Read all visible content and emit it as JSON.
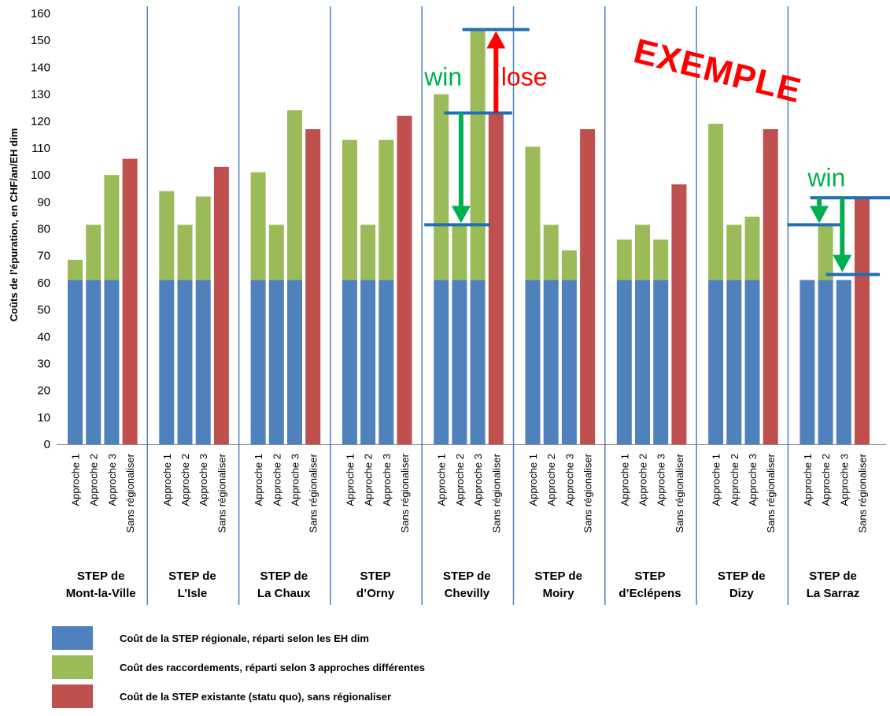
{
  "chart_data": {
    "type": "bar",
    "stacked": true,
    "ylabel": "Coûts de l’épuration, en CHF/an/EH dim",
    "ylim": [
      0,
      160
    ],
    "yticks": [
      0,
      10,
      20,
      30,
      40,
      50,
      60,
      70,
      80,
      90,
      100,
      110,
      120,
      130,
      140,
      150,
      160
    ],
    "grid": false,
    "groups": [
      {
        "label_line1": "STEP de",
        "label_line2": "Mont-la-Ville",
        "bars": [
          {
            "category": "Approche 1",
            "base": 61,
            "top": 68.5,
            "color_key": "green"
          },
          {
            "category": "Approche 2",
            "base": 61,
            "top": 81.5,
            "color_key": "green"
          },
          {
            "category": "Approche 3",
            "base": 61,
            "top": 100,
            "color_key": "green"
          },
          {
            "category": "Sans régionaliser",
            "base": 106,
            "top": 0,
            "color_key": "red"
          }
        ]
      },
      {
        "label_line1": "STEP de",
        "label_line2": "L’Isle",
        "bars": [
          {
            "category": "Approche 1",
            "base": 61,
            "top": 94,
            "color_key": "green"
          },
          {
            "category": "Approche 2",
            "base": 61,
            "top": 81.5,
            "color_key": "green"
          },
          {
            "category": "Approche 3",
            "base": 61,
            "top": 92,
            "color_key": "green"
          },
          {
            "category": "Sans régionaliser",
            "base": 103,
            "top": 0,
            "color_key": "red"
          }
        ]
      },
      {
        "label_line1": "STEP de",
        "label_line2": "La Chaux",
        "bars": [
          {
            "category": "Approche 1",
            "base": 61,
            "top": 101,
            "color_key": "green"
          },
          {
            "category": "Approche 2",
            "base": 61,
            "top": 81.5,
            "color_key": "green"
          },
          {
            "category": "Approche 3",
            "base": 61,
            "top": 124,
            "color_key": "green"
          },
          {
            "category": "Sans régionaliser",
            "base": 117,
            "top": 0,
            "color_key": "red"
          }
        ]
      },
      {
        "label_line1": "STEP",
        "label_line2": "d’Orny",
        "bars": [
          {
            "category": "Approche 1",
            "base": 61,
            "top": 113,
            "color_key": "green"
          },
          {
            "category": "Approche 2",
            "base": 61,
            "top": 81.5,
            "color_key": "green"
          },
          {
            "category": "Approche 3",
            "base": 61,
            "top": 113,
            "color_key": "green"
          },
          {
            "category": "Sans régionaliser",
            "base": 122,
            "top": 0,
            "color_key": "red"
          }
        ]
      },
      {
        "label_line1": "STEP de",
        "label_line2": "Chevilly",
        "bars": [
          {
            "category": "Approche 1",
            "base": 61,
            "top": 130,
            "color_key": "green"
          },
          {
            "category": "Approche 2",
            "base": 61,
            "top": 81.5,
            "color_key": "green"
          },
          {
            "category": "Approche 3",
            "base": 61,
            "top": 154,
            "color_key": "green"
          },
          {
            "category": "Sans régionaliser",
            "base": 123,
            "top": 0,
            "color_key": "red"
          }
        ]
      },
      {
        "label_line1": "STEP de",
        "label_line2": "Moiry",
        "bars": [
          {
            "category": "Approche 1",
            "base": 61,
            "top": 110.5,
            "color_key": "green"
          },
          {
            "category": "Approche 2",
            "base": 61,
            "top": 81.5,
            "color_key": "green"
          },
          {
            "category": "Approche 3",
            "base": 61,
            "top": 72,
            "color_key": "green"
          },
          {
            "category": "Sans régionaliser",
            "base": 117,
            "top": 0,
            "color_key": "red"
          }
        ]
      },
      {
        "label_line1": "STEP",
        "label_line2": "d’Eclépens",
        "bars": [
          {
            "category": "Approche 1",
            "base": 61,
            "top": 76,
            "color_key": "green"
          },
          {
            "category": "Approche 2",
            "base": 61,
            "top": 81.5,
            "color_key": "green"
          },
          {
            "category": "Approche 3",
            "base": 61,
            "top": 76,
            "color_key": "green"
          },
          {
            "category": "Sans régionaliser",
            "base": 96.5,
            "top": 0,
            "color_key": "red"
          }
        ]
      },
      {
        "label_line1": "STEP de",
        "label_line2": "Dizy",
        "bars": [
          {
            "category": "Approche 1",
            "base": 61,
            "top": 119,
            "color_key": "green"
          },
          {
            "category": "Approche 2",
            "base": 61,
            "top": 81.5,
            "color_key": "green"
          },
          {
            "category": "Approche 3",
            "base": 61,
            "top": 84.5,
            "color_key": "green"
          },
          {
            "category": "Sans régionaliser",
            "base": 117,
            "top": 0,
            "color_key": "red"
          }
        ]
      },
      {
        "label_line1": "STEP de",
        "label_line2": "La Sarraz",
        "bars": [
          {
            "category": "Approche 1",
            "base": 61,
            "top": 61,
            "color_key": "green"
          },
          {
            "category": "Approche 2",
            "base": 61,
            "top": 81.5,
            "color_key": "green"
          },
          {
            "category": "Approche 3",
            "base": 61,
            "top": 61,
            "color_key": "green"
          },
          {
            "category": "Sans régionaliser",
            "base": 91.5,
            "top": 0,
            "color_key": "red"
          }
        ]
      }
    ],
    "legend": [
      {
        "color_key": "blue",
        "label": "Coût de la STEP régionale, réparti selon les EH dim"
      },
      {
        "color_key": "green",
        "label": "Coût des raccordements, réparti selon 3 approches différentes"
      },
      {
        "color_key": "red",
        "label": "Coût de la STEP existante (statu quo), sans régionaliser"
      }
    ],
    "colors": {
      "blue": "#4f81bd",
      "green": "#9bbb59",
      "red": "#c0504d",
      "separator": "#4f81bd",
      "annotation_line": "#1f6fb5",
      "arrow_green": "#00b050",
      "arrow_red": "#ff0000",
      "text_green": "#00b050",
      "text_red": "#ff0000"
    },
    "annotations": {
      "stamp_text": "EXEMPLE",
      "chevilly_win_label": "win",
      "chevilly_lose_label": "lose",
      "sarraz_win_label": "win",
      "chevilly_lines": {
        "upper": 154,
        "middle": 123,
        "lower": 81.5
      },
      "sarraz_lines": {
        "upper": 91.5,
        "middle": 81.5,
        "lower": 61
      }
    }
  }
}
